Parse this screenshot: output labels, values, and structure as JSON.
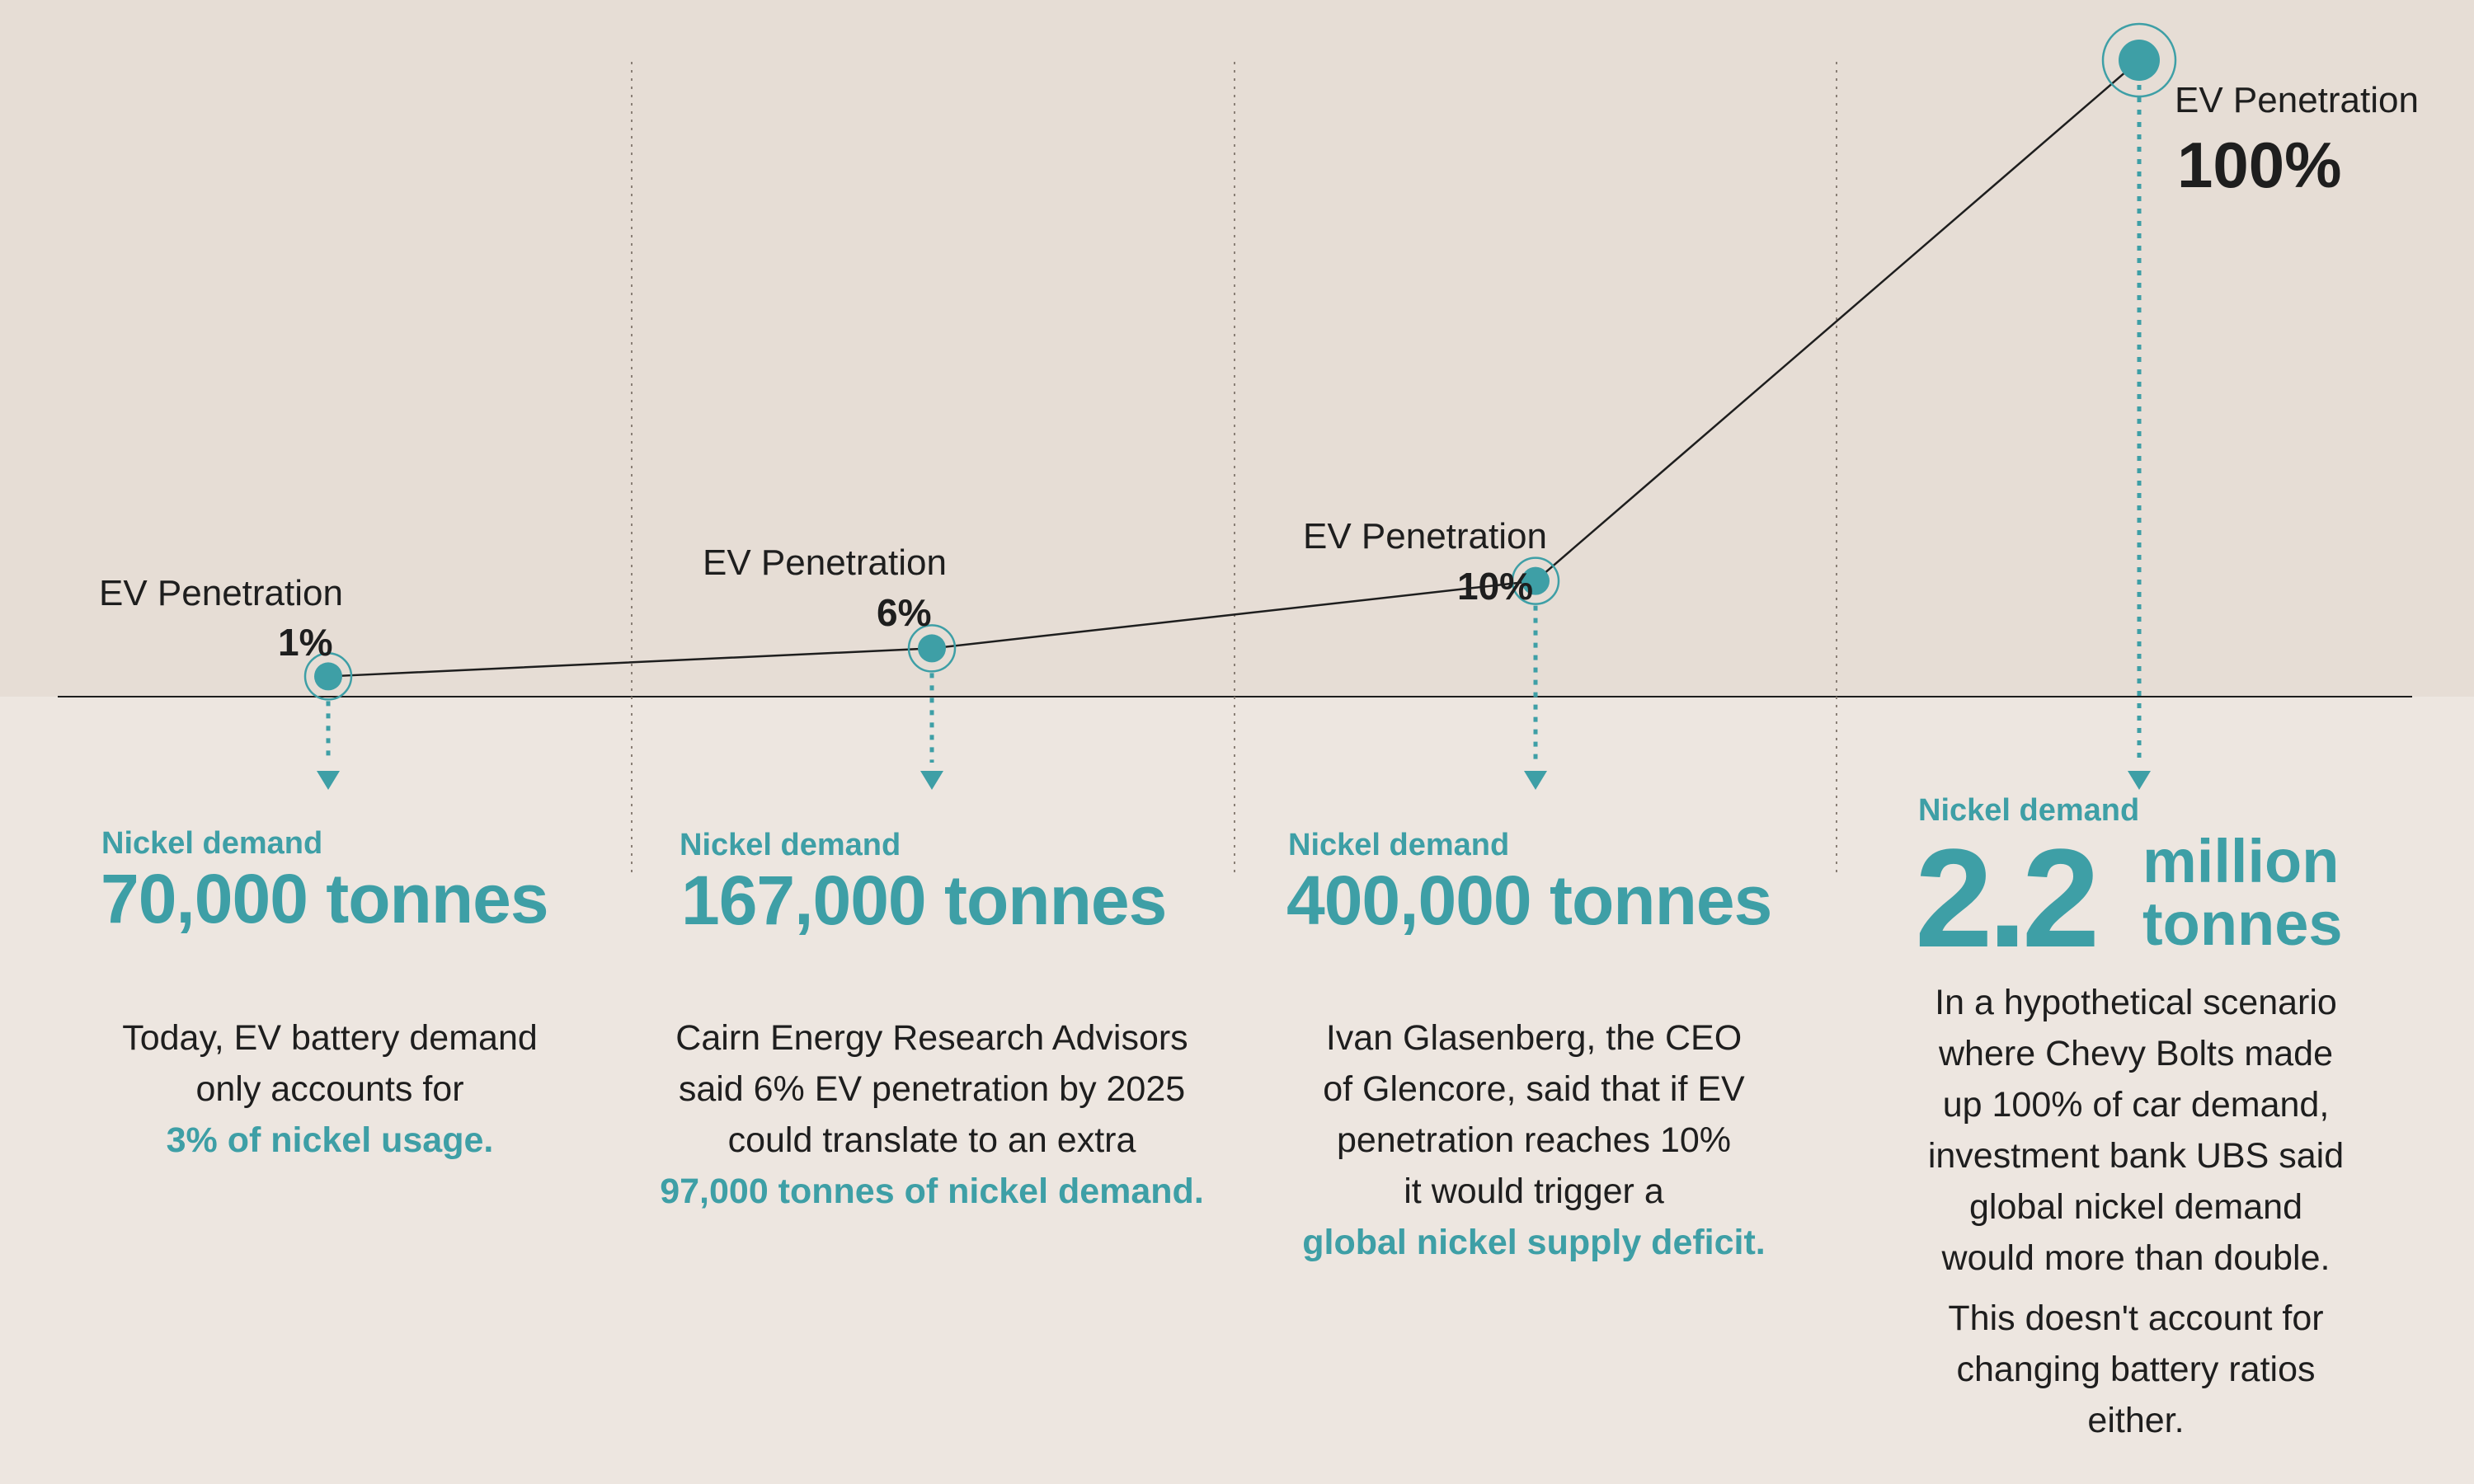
{
  "chart_data": {
    "type": "line",
    "x": [
      "1%",
      "6%",
      "10%",
      "100%"
    ],
    "series": [
      {
        "values": [
          70000,
          167000,
          400000,
          2200000
        ]
      }
    ],
    "colors": {
      "background_top": "#e6ddd5",
      "background_bottom": "#ede6e0",
      "accent": "#3e9fa6",
      "line": "#1e1e1e"
    }
  },
  "stages": [
    {
      "ev_label": "EV Penetration",
      "ev_value": "1%",
      "demand_label": "Nickel demand",
      "demand_amount": "70,000 tonnes",
      "desc_lines": [
        "Today, EV battery demand",
        "only accounts for"
      ],
      "desc_highlight": "3% of nickel usage."
    },
    {
      "ev_label": "EV Penetration",
      "ev_value": "6%",
      "demand_label": "Nickel demand",
      "demand_amount": "167,000 tonnes",
      "desc_lines": [
        "Cairn Energy Research Advisors",
        "said 6% EV penetration by 2025",
        "could translate to an extra"
      ],
      "desc_highlight": "97,000 tonnes of nickel demand."
    },
    {
      "ev_label": "EV Penetration",
      "ev_value": "10%",
      "demand_label": "Nickel demand",
      "demand_amount": "400,000 tonnes",
      "desc_lines": [
        "Ivan Glasenberg, the CEO",
        "of Glencore, said that if EV",
        "penetration reaches 10%",
        "it would trigger a"
      ],
      "desc_highlight": "global nickel supply deficit."
    },
    {
      "ev_label": "EV Penetration",
      "ev_value": "100%",
      "demand_label": "Nickel demand",
      "demand_number": "2.2",
      "demand_unit_1": "million",
      "demand_unit_2": "tonnes",
      "desc_lines": [
        "In a hypothetical scenario",
        "where Chevy Bolts made",
        "up 100% of car demand,",
        "investment bank UBS said",
        "global nickel demand",
        "would more than double."
      ],
      "desc_extra_lines": [
        "This doesn't account for",
        "changing battery ratios",
        "either."
      ]
    }
  ]
}
